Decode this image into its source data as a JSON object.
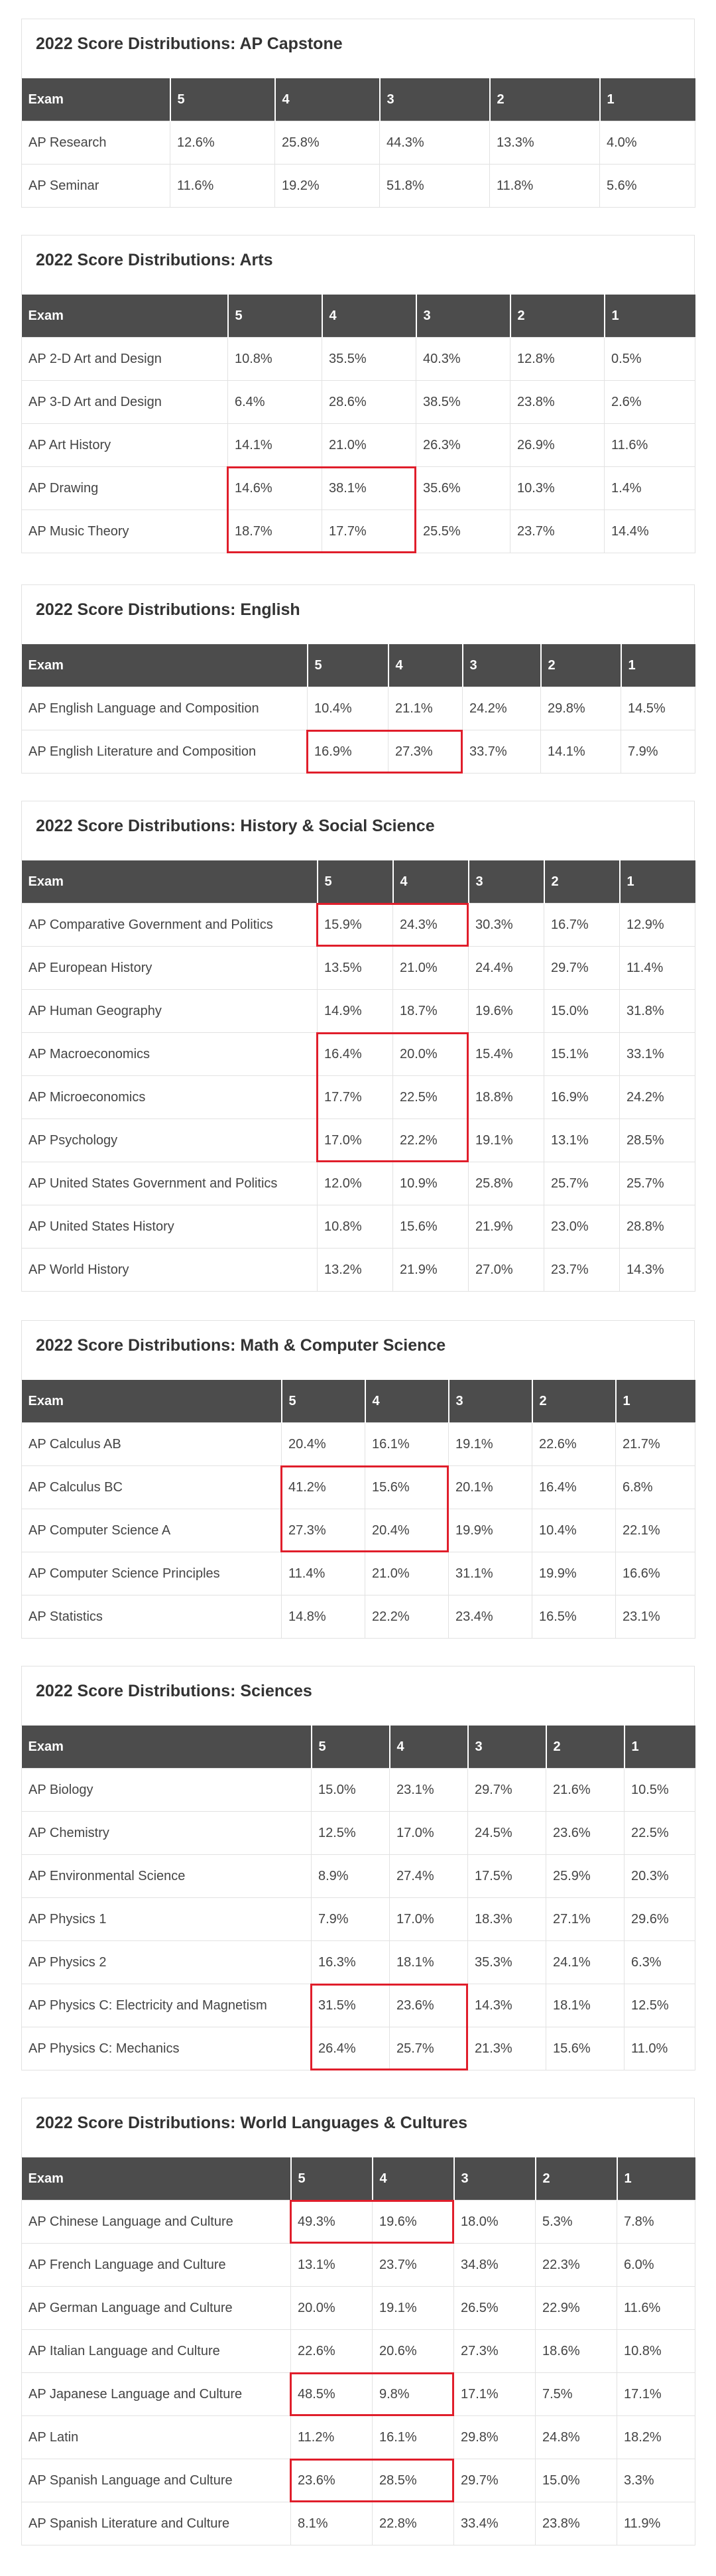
{
  "column_headers": [
    "Exam",
    "5",
    "4",
    "3",
    "2",
    "1"
  ],
  "highlight_color": "#e01e2b",
  "header_color": "#4c4c4c",
  "sections": [
    {
      "title": "2022 Score Distributions: AP Capstone",
      "rows": [
        [
          "AP Research",
          "12.6%",
          "25.8%",
          "44.3%",
          "13.3%",
          "4.0%"
        ],
        [
          "AP Seminar",
          "11.6%",
          "19.2%",
          "51.8%",
          "11.8%",
          "5.6%"
        ]
      ]
    },
    {
      "title": "2022 Score Distributions: Arts",
      "rows": [
        [
          "AP 2-D Art and Design",
          "10.8%",
          "35.5%",
          "40.3%",
          "12.8%",
          "0.5%"
        ],
        [
          "AP 3-D Art and Design",
          "6.4%",
          "28.6%",
          "38.5%",
          "23.8%",
          "2.6%"
        ],
        [
          "AP Art History",
          "14.1%",
          "21.0%",
          "26.3%",
          "26.9%",
          "11.6%"
        ],
        [
          "AP Drawing",
          "14.6%",
          "38.1%",
          "35.6%",
          "10.3%",
          "1.4%"
        ],
        [
          "AP Music Theory",
          "18.7%",
          "17.7%",
          "25.5%",
          "23.7%",
          "14.4%"
        ]
      ]
    },
    {
      "title": "2022 Score Distributions: English",
      "rows": [
        [
          "AP English Language and Composition",
          "10.4%",
          "21.1%",
          "24.2%",
          "29.8%",
          "14.5%"
        ],
        [
          "AP English Literature and Composition",
          "16.9%",
          "27.3%",
          "33.7%",
          "14.1%",
          "7.9%"
        ]
      ]
    },
    {
      "title": "2022 Score Distributions: History & Social Science",
      "rows": [
        [
          "AP Comparative Government and Politics",
          "15.9%",
          "24.3%",
          "30.3%",
          "16.7%",
          "12.9%"
        ],
        [
          "AP European History",
          "13.5%",
          "21.0%",
          "24.4%",
          "29.7%",
          "11.4%"
        ],
        [
          "AP Human Geography",
          "14.9%",
          "18.7%",
          "19.6%",
          "15.0%",
          "31.8%"
        ],
        [
          "AP Macroeconomics",
          "16.4%",
          "20.0%",
          "15.4%",
          "15.1%",
          "33.1%"
        ],
        [
          "AP Microeconomics",
          "17.7%",
          "22.5%",
          "18.8%",
          "16.9%",
          "24.2%"
        ],
        [
          "AP Psychology",
          "17.0%",
          "22.2%",
          "19.1%",
          "13.1%",
          "28.5%"
        ],
        [
          "AP United States Government and Politics",
          "12.0%",
          "10.9%",
          "25.8%",
          "25.7%",
          "25.7%"
        ],
        [
          "AP United States History",
          "10.8%",
          "15.6%",
          "21.9%",
          "23.0%",
          "28.8%"
        ],
        [
          "AP World History",
          "13.2%",
          "21.9%",
          "27.0%",
          "23.7%",
          "14.3%"
        ]
      ]
    },
    {
      "title": "2022 Score Distributions: Math & Computer Science",
      "rows": [
        [
          "AP Calculus AB",
          "20.4%",
          "16.1%",
          "19.1%",
          "22.6%",
          "21.7%"
        ],
        [
          "AP Calculus BC",
          "41.2%",
          "15.6%",
          "20.1%",
          "16.4%",
          "6.8%"
        ],
        [
          "AP Computer Science A",
          "27.3%",
          "20.4%",
          "19.9%",
          "10.4%",
          "22.1%"
        ],
        [
          "AP Computer Science Principles",
          "11.4%",
          "21.0%",
          "31.1%",
          "19.9%",
          "16.6%"
        ],
        [
          "AP Statistics",
          "14.8%",
          "22.2%",
          "23.4%",
          "16.5%",
          "23.1%"
        ]
      ]
    },
    {
      "title": "2022 Score Distributions: Sciences",
      "rows": [
        [
          "AP Biology",
          "15.0%",
          "23.1%",
          "29.7%",
          "21.6%",
          "10.5%"
        ],
        [
          "AP Chemistry",
          "12.5%",
          "17.0%",
          "24.5%",
          "23.6%",
          "22.5%"
        ],
        [
          "AP Environmental Science",
          "8.9%",
          "27.4%",
          "17.5%",
          "25.9%",
          "20.3%"
        ],
        [
          "AP Physics 1",
          "7.9%",
          "17.0%",
          "18.3%",
          "27.1%",
          "29.6%"
        ],
        [
          "AP Physics 2",
          "16.3%",
          "18.1%",
          "35.3%",
          "24.1%",
          "6.3%"
        ],
        [
          "AP Physics C: Electricity and Magnetism",
          "31.5%",
          "23.6%",
          "14.3%",
          "18.1%",
          "12.5%"
        ],
        [
          "AP Physics C: Mechanics",
          "26.4%",
          "25.7%",
          "21.3%",
          "15.6%",
          "11.0%"
        ]
      ]
    },
    {
      "title": "2022 Score Distributions: World Languages & Cultures",
      "rows": [
        [
          "AP Chinese Language and Culture",
          "49.3%",
          "19.6%",
          "18.0%",
          "5.3%",
          "7.8%"
        ],
        [
          "AP French Language and Culture",
          "13.1%",
          "23.7%",
          "34.8%",
          "22.3%",
          "6.0%"
        ],
        [
          "AP German Language and Culture",
          "20.0%",
          "19.1%",
          "26.5%",
          "22.9%",
          "11.6%"
        ],
        [
          "AP Italian Language and Culture",
          "22.6%",
          "20.6%",
          "27.3%",
          "18.6%",
          "10.8%"
        ],
        [
          "AP Japanese Language and Culture",
          "48.5%",
          "9.8%",
          "17.1%",
          "7.5%",
          "17.1%"
        ],
        [
          "AP Latin",
          "11.2%",
          "16.1%",
          "29.8%",
          "24.8%",
          "18.2%"
        ],
        [
          "AP Spanish Language and Culture",
          "23.6%",
          "28.5%",
          "29.7%",
          "15.0%",
          "3.3%"
        ],
        [
          "AP Spanish Literature and Culture",
          "8.1%",
          "22.8%",
          "33.4%",
          "23.8%",
          "11.9%"
        ]
      ]
    }
  ]
}
